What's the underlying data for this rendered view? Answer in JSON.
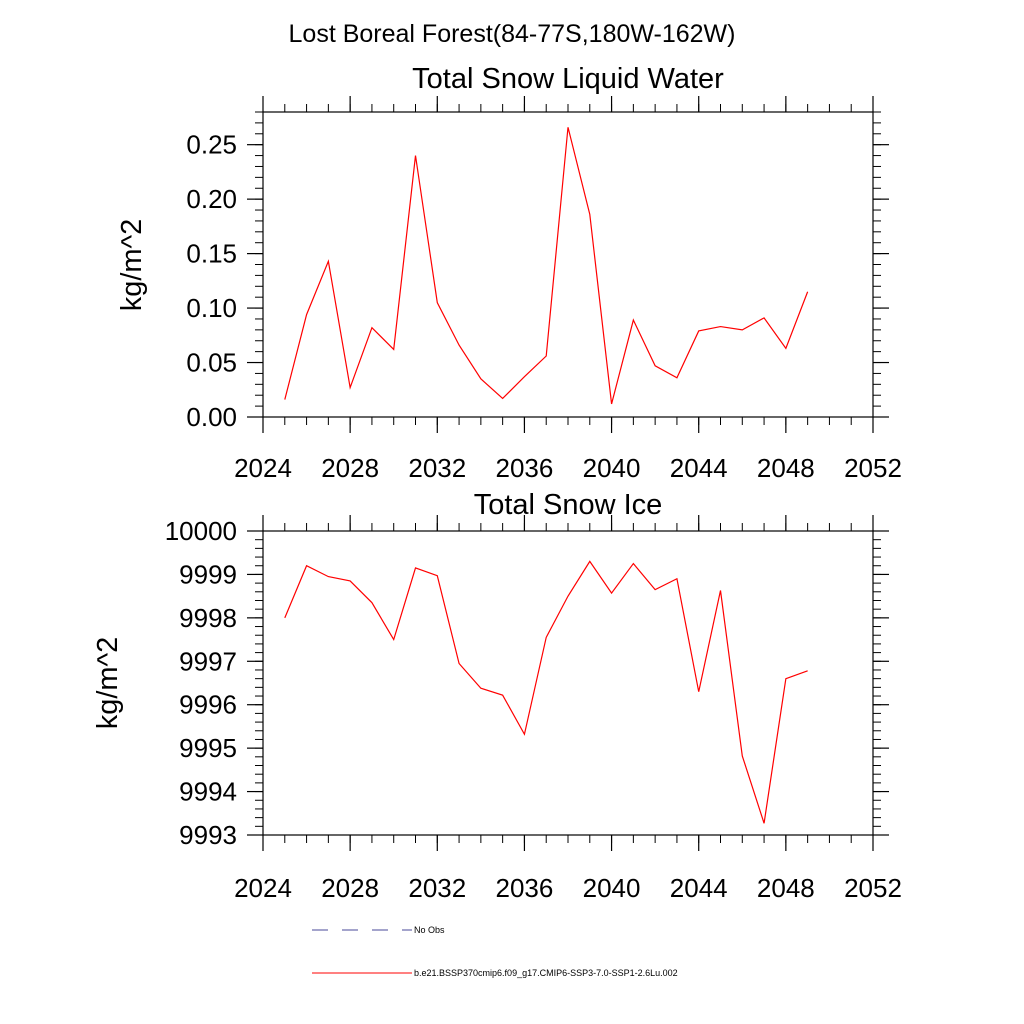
{
  "figure": {
    "title": "Lost Boreal Forest(84-77S,180W-162W)"
  },
  "legend": {
    "entries": [
      {
        "label": "No Obs",
        "color": "#4a4a9a",
        "style": "dashed"
      },
      {
        "label": "b.e21.BSSP370cmip6.f09_g17.CMIP6-SSP3-7.0-SSP1-2.6Lu.002",
        "color": "#ff0000",
        "style": "solid"
      }
    ]
  },
  "chart_data": [
    {
      "type": "line",
      "title": "Total Snow Liquid Water",
      "xlabel": "",
      "ylabel": "kg/m^2",
      "xlim": [
        2024,
        2052
      ],
      "ylim": [
        0,
        0.28
      ],
      "x_ticks": [
        "2024",
        "2028",
        "2032",
        "2036",
        "2040",
        "2044",
        "2048",
        "2052"
      ],
      "x_tick_values": [
        2024,
        2028,
        2032,
        2036,
        2040,
        2044,
        2048,
        2052
      ],
      "y_ticks": [
        "0.00",
        "0.05",
        "0.10",
        "0.15",
        "0.20",
        "0.25"
      ],
      "y_tick_values": [
        0,
        0.05,
        0.1,
        0.15,
        0.2,
        0.25
      ],
      "y_minor_step": 0.01,
      "x_minor_step": 1,
      "series": [
        {
          "color": "#ff0000",
          "x": [
            2025,
            2026,
            2027,
            2028,
            2029,
            2030,
            2031,
            2032,
            2033,
            2034,
            2035,
            2036,
            2037,
            2038,
            2039,
            2040,
            2041,
            2042,
            2043,
            2044,
            2045,
            2046,
            2047,
            2048,
            2049
          ],
          "values": [
            0.016,
            0.094,
            0.143,
            0.027,
            0.082,
            0.062,
            0.24,
            0.105,
            0.066,
            0.035,
            0.017,
            0.037,
            0.056,
            0.266,
            0.186,
            0.012,
            0.089,
            0.047,
            0.036,
            0.079,
            0.083,
            0.08,
            0.091,
            0.063,
            0.115
          ]
        }
      ]
    },
    {
      "type": "line",
      "title": "Total Snow Ice",
      "xlabel": "",
      "ylabel": "kg/m^2",
      "xlim": [
        2024,
        2052
      ],
      "ylim": [
        9993,
        10000
      ],
      "x_ticks": [
        "2024",
        "2028",
        "2032",
        "2036",
        "2040",
        "2044",
        "2048",
        "2052"
      ],
      "x_tick_values": [
        2024,
        2028,
        2032,
        2036,
        2040,
        2044,
        2048,
        2052
      ],
      "y_ticks": [
        "9993",
        "9994",
        "9995",
        "9996",
        "9997",
        "9998",
        "9999",
        "10000"
      ],
      "y_tick_values": [
        9993,
        9994,
        9995,
        9996,
        9997,
        9998,
        9999,
        10000
      ],
      "y_minor_step": 0.2,
      "x_minor_step": 1,
      "series": [
        {
          "color": "#ff0000",
          "x": [
            2025,
            2026,
            2027,
            2028,
            2029,
            2030,
            2031,
            2032,
            2033,
            2034,
            2035,
            2036,
            2037,
            2038,
            2039,
            2040,
            2041,
            2042,
            2043,
            2044,
            2045,
            2046,
            2047,
            2048,
            2049
          ],
          "values": [
            9998.0,
            9999.2,
            9998.95,
            9998.85,
            9998.35,
            9997.5,
            9999.15,
            9998.97,
            9996.95,
            9996.38,
            9996.22,
            9995.32,
            9997.55,
            9998.5,
            9999.3,
            9998.57,
            9999.25,
            9998.65,
            9998.9,
            9996.3,
            9998.63,
            9994.82,
            9993.27,
            9996.6,
            9996.78
          ]
        }
      ]
    }
  ]
}
